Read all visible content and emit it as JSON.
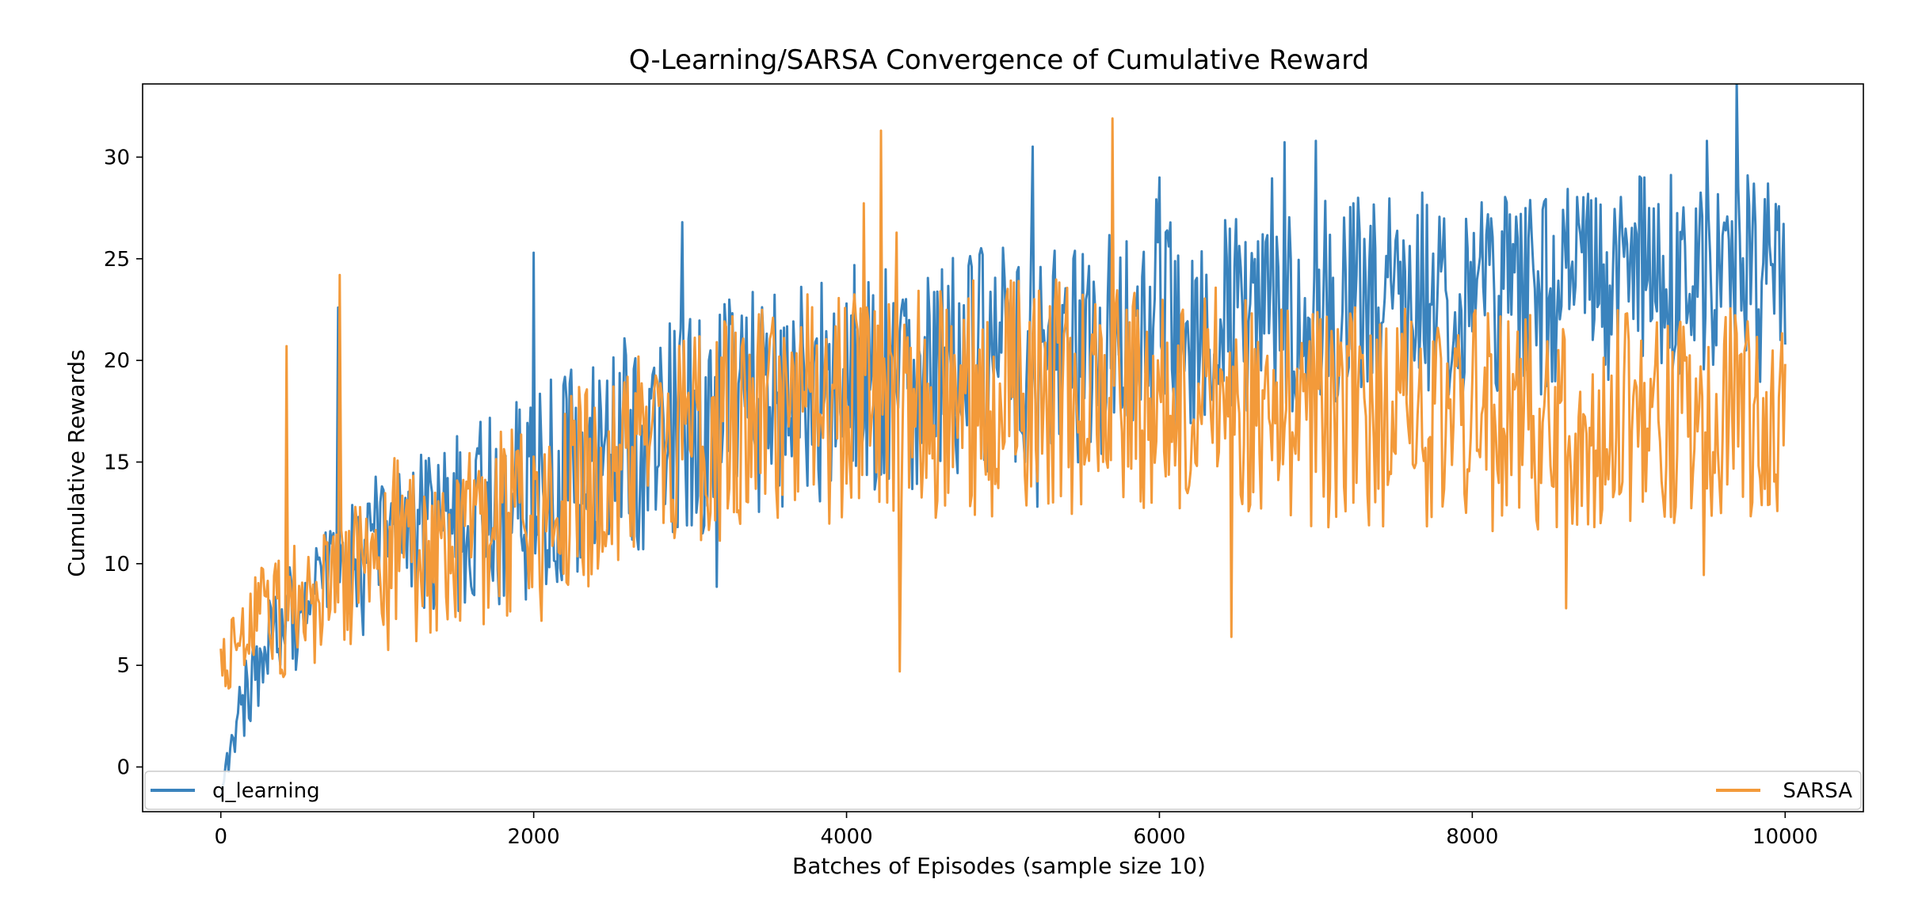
{
  "chart_data": {
    "type": "line",
    "title": "Q-Learning/SARSA Convergence of Cumulative Reward",
    "xlabel": "Batches of Episodes (sample size 10)",
    "ylabel": "Cumulative Rewards",
    "xlim": [
      -500,
      10500
    ],
    "ylim": [
      -2.2,
      33.6
    ],
    "xticks": [
      0,
      2000,
      4000,
      6000,
      8000,
      10000
    ],
    "yticks": [
      0,
      5,
      10,
      15,
      20,
      25,
      30
    ],
    "grid": false,
    "legend_placement": "bottom, split left and right",
    "n_points": 1000,
    "series": [
      {
        "name": "q_learning",
        "color": "#3a83bd",
        "trend": [
          [
            0,
            0
          ],
          [
            100,
            2.5
          ],
          [
            300,
            6
          ],
          [
            600,
            8.5
          ],
          [
            1000,
            10.5
          ],
          [
            1500,
            12
          ],
          [
            2000,
            13.5
          ],
          [
            2500,
            15.5
          ],
          [
            3000,
            16.8
          ],
          [
            3500,
            18.2
          ],
          [
            4000,
            19
          ],
          [
            4500,
            19.5
          ],
          [
            5000,
            20
          ],
          [
            5500,
            20.5
          ],
          [
            6000,
            21.3
          ],
          [
            6500,
            22
          ],
          [
            7000,
            22.6
          ],
          [
            7500,
            23.2
          ],
          [
            8000,
            23.5
          ],
          [
            9000,
            24
          ],
          [
            10000,
            24.5
          ]
        ],
        "spread": [
          [
            0,
            1
          ],
          [
            300,
            2
          ],
          [
            1000,
            3
          ],
          [
            2000,
            4
          ],
          [
            4000,
            4.5
          ],
          [
            7000,
            4
          ],
          [
            10000,
            3.8
          ]
        ],
        "peaks": [
          [
            750,
            22.6
          ],
          [
            2000,
            25.3
          ],
          [
            2950,
            26.8
          ],
          [
            6000,
            29
          ],
          [
            7000,
            30.8
          ],
          [
            9500,
            30.8
          ]
        ]
      },
      {
        "name": "SARSA",
        "color": "#f39a3a",
        "trend": [
          [
            0,
            5.5
          ],
          [
            200,
            6.5
          ],
          [
            500,
            8
          ],
          [
            1000,
            9.5
          ],
          [
            1500,
            11
          ],
          [
            2000,
            12.5
          ],
          [
            2500,
            14.5
          ],
          [
            3000,
            16
          ],
          [
            3500,
            17.3
          ],
          [
            4000,
            17.8
          ],
          [
            5000,
            18.2
          ],
          [
            6000,
            18
          ],
          [
            7000,
            17.5
          ],
          [
            8000,
            17
          ],
          [
            9000,
            17.2
          ],
          [
            10000,
            17.5
          ]
        ],
        "spread": [
          [
            0,
            1.5
          ],
          [
            300,
            2.5
          ],
          [
            1000,
            3
          ],
          [
            2000,
            3.8
          ],
          [
            4000,
            4.5
          ],
          [
            6000,
            4.5
          ],
          [
            10000,
            4
          ]
        ],
        "peaks": [
          [
            420,
            20.7
          ],
          [
            760,
            24.2
          ],
          [
            4220,
            31.3
          ],
          [
            5700,
            31.9
          ],
          [
            4340,
            4.7
          ],
          [
            6460,
            6.4
          ]
        ]
      }
    ]
  }
}
